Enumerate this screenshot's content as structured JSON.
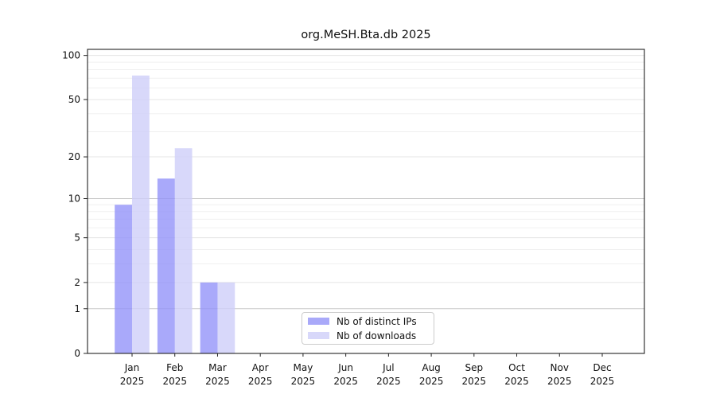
{
  "title": "org.MeSH.Bta.db 2025",
  "chart_data": {
    "type": "bar",
    "title": "org.MeSH.Bta.db 2025",
    "categories": [
      "Jan",
      "Feb",
      "Mar",
      "Apr",
      "May",
      "Jun",
      "Jul",
      "Aug",
      "Sep",
      "Oct",
      "Nov",
      "Dec"
    ],
    "year": "2025",
    "series": [
      {
        "name": "Nb of distinct IPs",
        "values": [
          9,
          14,
          2,
          0,
          0,
          0,
          0,
          0,
          0,
          0,
          0,
          0
        ],
        "color": "#a9a9f9",
        "fill": "rgba(148,148,249,0.8)"
      },
      {
        "name": "Nb of downloads",
        "values": [
          73,
          23,
          2,
          0,
          0,
          0,
          0,
          0,
          0,
          0,
          0,
          0
        ],
        "color": "#d8d8fa",
        "fill": "rgba(206,206,249,0.8)"
      }
    ],
    "y_axis": {
      "scale": "log1p",
      "max": 110,
      "major_ticks": [
        0,
        1,
        2,
        5,
        10,
        20,
        50,
        100
      ],
      "emphasis_gridlines": [
        1,
        10
      ],
      "minor_gridlines": [
        3,
        4,
        6,
        7,
        8,
        9,
        30,
        40,
        60,
        70,
        80,
        90
      ]
    },
    "x_axis": {
      "tick_label_line1": [
        "Jan",
        "Feb",
        "Mar",
        "Apr",
        "May",
        "Jun",
        "Jul",
        "Aug",
        "Sep",
        "Oct",
        "Nov",
        "Dec"
      ],
      "tick_label_line2": "2025"
    },
    "grid": true,
    "legend_position": "bottom-center",
    "style": {
      "grid_minor_color": "#f0f0f0",
      "grid_major_color": "#e4e4e4",
      "grid_emphasis_color": "#c7c7c7",
      "axis_color": "#222222",
      "tick_label_color": "#111111"
    }
  }
}
